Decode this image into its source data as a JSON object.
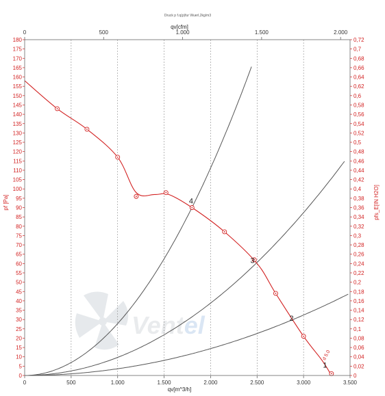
{
  "header": {
    "title": "Druck p f.q(p)fur Wuerl,2kg/m3"
  },
  "watermark": {
    "text_a": "Vent",
    "text_b": "el"
  },
  "chart_data": {
    "type": "line",
    "title": "Druck p f.q(p)fur Wuerl,2kg/m3",
    "xlabel": "qv[m^3/h]",
    "ylabel": "pf [Pa]",
    "x2label": "qv[cfm]",
    "y2label": "pfs_E[IN H2O]",
    "xlim": [
      0,
      3500
    ],
    "ylim": [
      0,
      180
    ],
    "x2lim": [
      0,
      2060
    ],
    "y2lim": [
      0,
      0.72
    ],
    "x_ticks": [
      "0",
      "500",
      "1.000",
      "1.500",
      "2.000",
      "2.500",
      "3.000",
      "3.500"
    ],
    "x_tick_values": [
      0,
      500,
      1000,
      1500,
      2000,
      2500,
      3000,
      3500
    ],
    "x2_ticks": [
      "0",
      "500",
      "1.000",
      "1.500",
      "2.000"
    ],
    "x2_tick_values": [
      0,
      500,
      1000,
      1500,
      2000
    ],
    "y_ticks": [
      "0",
      "5",
      "10",
      "15",
      "20",
      "25",
      "30",
      "35",
      "40",
      "45",
      "50",
      "55",
      "60",
      "65",
      "70",
      "75",
      "80",
      "85",
      "90",
      "95",
      "100",
      "105",
      "110",
      "115",
      "120",
      "125",
      "130",
      "135",
      "140",
      "145",
      "150",
      "155",
      "160",
      "165",
      "170",
      "175",
      "180"
    ],
    "y2_ticks": [
      "0",
      "0,02",
      "0,04",
      "0,06",
      "0,08",
      "0,1",
      "0,12",
      "0,14",
      "0,16",
      "0,18",
      "0,2",
      "0,22",
      "0,24",
      "0,26",
      "0,28",
      "0,3",
      "0,32",
      "0,34",
      "0,36",
      "0,38",
      "0,4",
      "0,42",
      "0,44",
      "0,46",
      "0,48",
      "0,5",
      "0,52",
      "0,54",
      "0,56",
      "0,58",
      "0,6",
      "0,62",
      "0,64",
      "0,66",
      "0,68",
      "0,7",
      "0,72"
    ],
    "grid": "vertical-dashed",
    "series": [
      {
        "role": "fan-curve",
        "color": "#d22020",
        "label": "d 5.0",
        "x": [
          0,
          350,
          670,
          1000,
          1200,
          1400,
          1550,
          1800,
          2150,
          2500,
          2700,
          3000,
          3200,
          3300
        ],
        "y": [
          158,
          143,
          132,
          117,
          98,
          97,
          97,
          90,
          77,
          60,
          44,
          21,
          8,
          0
        ],
        "markers_x": [
          350,
          670,
          1000,
          1200,
          1520,
          1800,
          2150,
          2470,
          2700,
          3000,
          3300
        ],
        "markers_y": [
          143,
          132,
          117,
          96,
          98,
          90,
          77,
          62,
          44,
          21,
          1
        ]
      },
      {
        "role": "system-curve",
        "label": "4",
        "color": "#555555",
        "k": 2.78e-05,
        "x_end": 2440
      },
      {
        "role": "system-curve",
        "label": "3",
        "color": "#555555",
        "k": 9.7e-06,
        "x_end": 3450
      },
      {
        "role": "system-curve",
        "label": "2",
        "color": "#555555",
        "k": 3.6e-06,
        "x_end": 3480
      }
    ],
    "operating_points": [
      {
        "label": "4",
        "x": 1790,
        "y": 93
      },
      {
        "label": "3",
        "x": 2450,
        "y": 61
      },
      {
        "label": "2",
        "x": 2870,
        "y": 30
      },
      {
        "label": "1",
        "x": 3230,
        "y": 5
      }
    ]
  }
}
